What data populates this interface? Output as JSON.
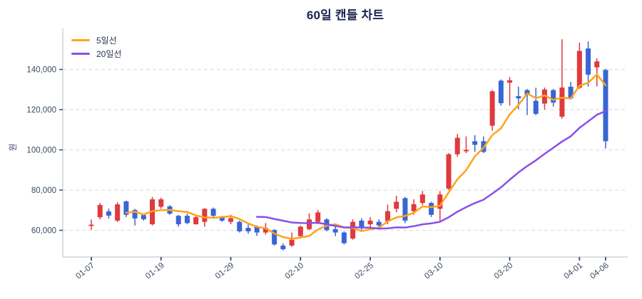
{
  "title": "60일 캔들 차트",
  "legend": {
    "items": [
      {
        "label": "5일선",
        "color": "#FFA319"
      },
      {
        "label": "20일선",
        "color": "#8A4FE8"
      }
    ]
  },
  "colors": {
    "up_candle": "#E0393E",
    "down_candle": "#3866D2",
    "ma5_line": "#FFA319",
    "ma20_line": "#8A4FE8",
    "gridline": "#DCDFE6",
    "axis_spine": "#CDD2D9",
    "tick_text": "#3B4863",
    "title_text": "#1B2450"
  },
  "y_axis": {
    "label": "원",
    "tick_labels": [
      "60,000",
      "80,000",
      "100,000",
      "120,000",
      "140,000"
    ],
    "tick_values": [
      60000,
      80000,
      100000,
      120000,
      140000
    ]
  },
  "x_axis": {
    "tick_labels": [
      "01-07",
      "01-19",
      "01-29",
      "02-10",
      "02-25",
      "03-10",
      "03-20",
      "04-01",
      "04-06"
    ],
    "tick_indices": [
      0,
      8,
      16,
      24,
      32,
      40,
      48,
      56,
      59
    ]
  },
  "chart_data": {
    "type": "candlestick",
    "title": "60일 캔들 차트",
    "ylabel": "원",
    "ylim": [
      46500,
      160500
    ],
    "grid": "horizontal-dashed",
    "legend_position": "upper-left",
    "up_color": "#E0393E",
    "down_color": "#3866D2",
    "x_tick_labels": [
      "01-07",
      "01-19",
      "01-29",
      "02-10",
      "02-25",
      "03-10",
      "03-20",
      "04-01",
      "04-06"
    ],
    "x_tick_indices": [
      0,
      8,
      16,
      24,
      32,
      40,
      48,
      56,
      59
    ],
    "overlays": [
      {
        "name": "5일선",
        "period": 5,
        "color": "#FFA319"
      },
      {
        "name": "20일선",
        "period": 20,
        "color": "#8A4FE8"
      }
    ],
    "candles_format": [
      "open",
      "high",
      "low",
      "close"
    ],
    "candles": [
      [
        62200,
        65400,
        60300,
        62800
      ],
      [
        66500,
        73600,
        65400,
        72600
      ],
      [
        69400,
        70800,
        65800,
        67300
      ],
      [
        64800,
        74000,
        64100,
        72900
      ],
      [
        74400,
        74800,
        66600,
        67700
      ],
      [
        70100,
        70700,
        62400,
        65900
      ],
      [
        67600,
        68300,
        64800,
        65500
      ],
      [
        63000,
        76600,
        62400,
        75400
      ],
      [
        71700,
        76200,
        70700,
        75400
      ],
      [
        71900,
        72500,
        67700,
        68300
      ],
      [
        67200,
        67700,
        61800,
        63000
      ],
      [
        67200,
        68300,
        63000,
        63600
      ],
      [
        63000,
        67200,
        62800,
        66500
      ],
      [
        64200,
        71000,
        61800,
        70700
      ],
      [
        70700,
        71300,
        66600,
        67200
      ],
      [
        66600,
        67200,
        64200,
        64800
      ],
      [
        64200,
        67700,
        63000,
        66000
      ],
      [
        64200,
        64800,
        58900,
        59500
      ],
      [
        61200,
        63000,
        58300,
        59500
      ],
      [
        61800,
        62400,
        57200,
        58900
      ],
      [
        58900,
        63600,
        57800,
        61200
      ],
      [
        60100,
        60600,
        52400,
        53000
      ],
      [
        52400,
        53500,
        50000,
        50600
      ],
      [
        52400,
        58900,
        51800,
        55300
      ],
      [
        57100,
        62400,
        56500,
        61800
      ],
      [
        60600,
        68300,
        60100,
        65400
      ],
      [
        64200,
        70100,
        63000,
        68900
      ],
      [
        65400,
        66000,
        59500,
        60100
      ],
      [
        60600,
        61800,
        57100,
        58900
      ],
      [
        58900,
        59500,
        53000,
        53600
      ],
      [
        55900,
        65400,
        55300,
        64200
      ],
      [
        64800,
        66000,
        60100,
        61200
      ],
      [
        63000,
        66600,
        60600,
        64800
      ],
      [
        64200,
        65400,
        61200,
        62400
      ],
      [
        64500,
        72800,
        63000,
        69500
      ],
      [
        70700,
        77200,
        68900,
        74200
      ],
      [
        76000,
        76600,
        63600,
        64800
      ],
      [
        69500,
        75400,
        67700,
        73000
      ],
      [
        73600,
        79500,
        72500,
        77800
      ],
      [
        73600,
        74200,
        66600,
        67700
      ],
      [
        70700,
        79500,
        64800,
        77800
      ],
      [
        80700,
        98400,
        80100,
        97800
      ],
      [
        97800,
        107900,
        96600,
        106000
      ],
      [
        99300,
        106700,
        98400,
        100000
      ],
      [
        104300,
        107300,
        99000,
        102500
      ],
      [
        104300,
        106700,
        98400,
        99000
      ],
      [
        112000,
        129700,
        109600,
        129100
      ],
      [
        134400,
        135000,
        122000,
        123200
      ],
      [
        133400,
        136200,
        122000,
        134600
      ],
      [
        126700,
        131400,
        120200,
        125600
      ],
      [
        129700,
        130300,
        117300,
        127300
      ],
      [
        124400,
        130900,
        117300,
        117900
      ],
      [
        123000,
        131000,
        120000,
        130000
      ],
      [
        129700,
        130300,
        121500,
        123500
      ],
      [
        116500,
        155000,
        115500,
        131000
      ],
      [
        131400,
        133800,
        125000,
        125600
      ],
      [
        130900,
        153300,
        130300,
        149200
      ],
      [
        150400,
        153900,
        131400,
        137400
      ],
      [
        141000,
        145500,
        131500,
        144000
      ],
      [
        139700,
        140300,
        100700,
        104300
      ]
    ]
  }
}
